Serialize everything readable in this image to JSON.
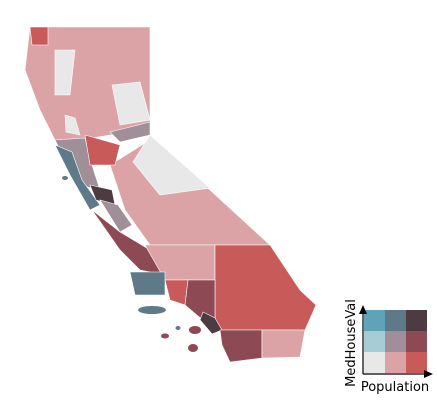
{
  "legend": {
    "x_label": "Population",
    "y_label": "MedHouseVal",
    "colors": [
      [
        "#5ea3b8",
        "#5e7a88",
        "#4d3b42"
      ],
      [
        "#a7ccd6",
        "#a08f99",
        "#8e4a54"
      ],
      [
        "#e8e8e8",
        "#dba3a5",
        "#c85a5a"
      ]
    ]
  }
}
